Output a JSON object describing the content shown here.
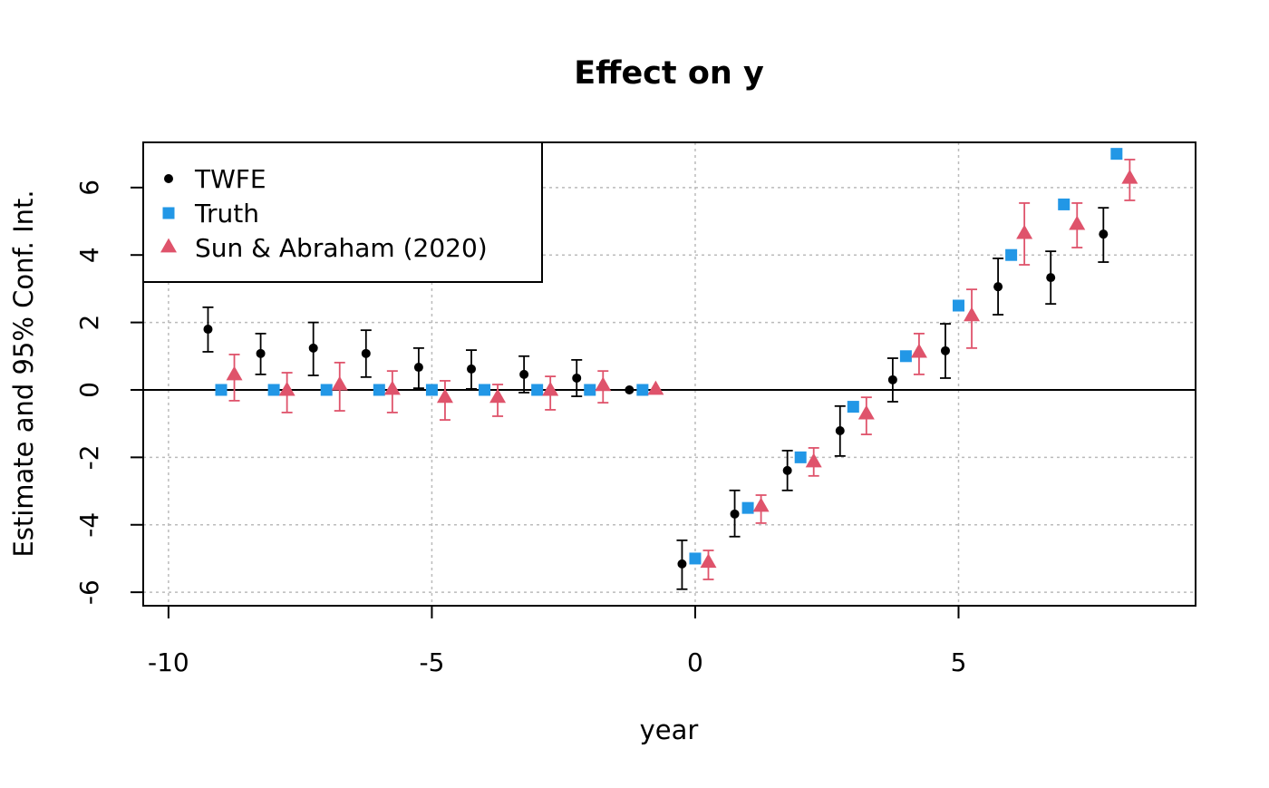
{
  "chart_data": {
    "type": "scatter",
    "title": "Effect on y",
    "xlabel": "year",
    "ylabel": "Estimate and 95% Conf. Int.",
    "xlim": [
      -10.48,
      9.5
    ],
    "ylim": [
      -6.4,
      7.34
    ],
    "xticks": [
      -10,
      -5,
      0,
      5
    ],
    "yticks": [
      -6,
      -4,
      -2,
      0,
      2,
      4,
      6
    ],
    "grid": true,
    "zero_line": true,
    "legend_position": "top-left",
    "series": [
      {
        "name": "TWFE",
        "marker": "circle",
        "color": "#000000",
        "x_offset": -0.25,
        "x": [
          -9,
          -8,
          -7,
          -6,
          -5,
          -4,
          -3,
          -2,
          -1,
          0,
          1,
          2,
          3,
          4,
          5,
          6,
          7,
          8
        ],
        "y": [
          1.8,
          1.08,
          1.24,
          1.08,
          0.67,
          0.62,
          0.46,
          0.35,
          0,
          -5.16,
          -3.68,
          -2.39,
          -1.21,
          0.3,
          1.16,
          3.06,
          3.33,
          4.62
        ],
        "ci_low": [
          1.13,
          0.46,
          0.43,
          0.38,
          0.05,
          0.03,
          -0.08,
          -0.19,
          null,
          -5.91,
          -4.35,
          -2.98,
          -1.96,
          -0.35,
          0.35,
          2.23,
          2.55,
          3.79
        ],
        "ci_high": [
          2.45,
          1.67,
          2.0,
          1.77,
          1.24,
          1.18,
          1.0,
          0.89,
          null,
          -4.46,
          -2.98,
          -1.8,
          -0.48,
          0.94,
          1.96,
          3.9,
          4.11,
          5.4
        ]
      },
      {
        "name": "Truth",
        "marker": "square",
        "color": "#2297E6",
        "x_offset": 0,
        "x": [
          -9,
          -8,
          -7,
          -6,
          -5,
          -4,
          -3,
          -2,
          -1,
          0,
          1,
          2,
          3,
          4,
          5,
          6,
          7,
          8
        ],
        "y": [
          0,
          0,
          0,
          0,
          0,
          0,
          0,
          0,
          0,
          -5,
          -3.5,
          -2,
          -0.5,
          1,
          2.5,
          4,
          5.5,
          7
        ]
      },
      {
        "name": "Sun & Abraham (2020)",
        "marker": "triangle",
        "color": "#DF536B",
        "x_offset": 0.25,
        "x": [
          -9,
          -8,
          -7,
          -6,
          -5,
          -4,
          -3,
          -2,
          -1,
          0,
          1,
          2,
          3,
          4,
          5,
          6,
          7,
          8
        ],
        "y": [
          0.43,
          -0.03,
          0.13,
          0,
          -0.24,
          -0.24,
          -0.03,
          0.11,
          0,
          -5.13,
          -3.47,
          -2.15,
          -0.73,
          1.1,
          2.18,
          4.62,
          4.89,
          6.26
        ],
        "ci_low": [
          -0.32,
          -0.67,
          -0.62,
          -0.67,
          -0.89,
          -0.78,
          -0.59,
          -0.38,
          null,
          -5.62,
          -3.95,
          -2.55,
          -1.32,
          0.46,
          1.24,
          3.71,
          4.22,
          5.62
        ],
        "ci_high": [
          1.05,
          0.51,
          0.81,
          0.56,
          0.27,
          0.16,
          0.4,
          0.56,
          null,
          -4.76,
          -3.12,
          -1.72,
          -0.22,
          1.67,
          2.98,
          5.54,
          5.54,
          6.83
        ]
      }
    ]
  }
}
